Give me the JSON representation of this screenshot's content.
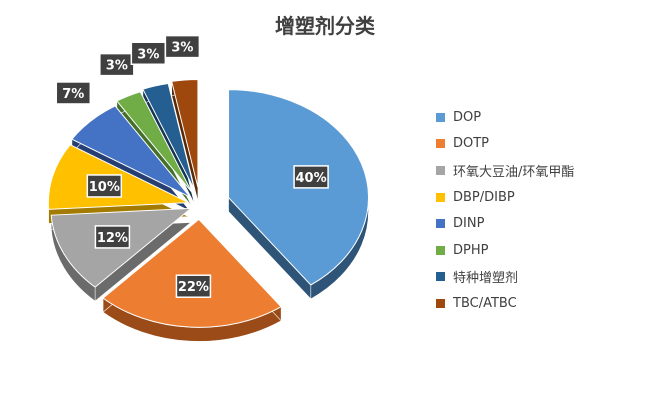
{
  "chart_data": {
    "type": "pie",
    "title": "增塑剂分类",
    "legend_position": "right",
    "categories": [
      "DOP",
      "DOTP",
      "环氧大豆油/环氧甲酯",
      "DBP/DIBP",
      "DINP",
      "DPHP",
      "特种增塑剂",
      "TBC/ATBC"
    ],
    "values": [
      40,
      22,
      12,
      10,
      7,
      3,
      3,
      3
    ],
    "data_labels": [
      "40%",
      "22%",
      "12%",
      "10%",
      "7%",
      "3%",
      "3%",
      "3%"
    ],
    "colors": [
      "#5b9bd5",
      "#ed7d31",
      "#a5a5a5",
      "#ffc000",
      "#4472c4",
      "#70ad47",
      "#255e91",
      "#9e480e"
    ],
    "side_colors": [
      "#2e5478",
      "#9a4b17",
      "#6b6b6b",
      "#a37b00",
      "#263f72",
      "#45702a",
      "#153552",
      "#5c2906"
    ]
  }
}
